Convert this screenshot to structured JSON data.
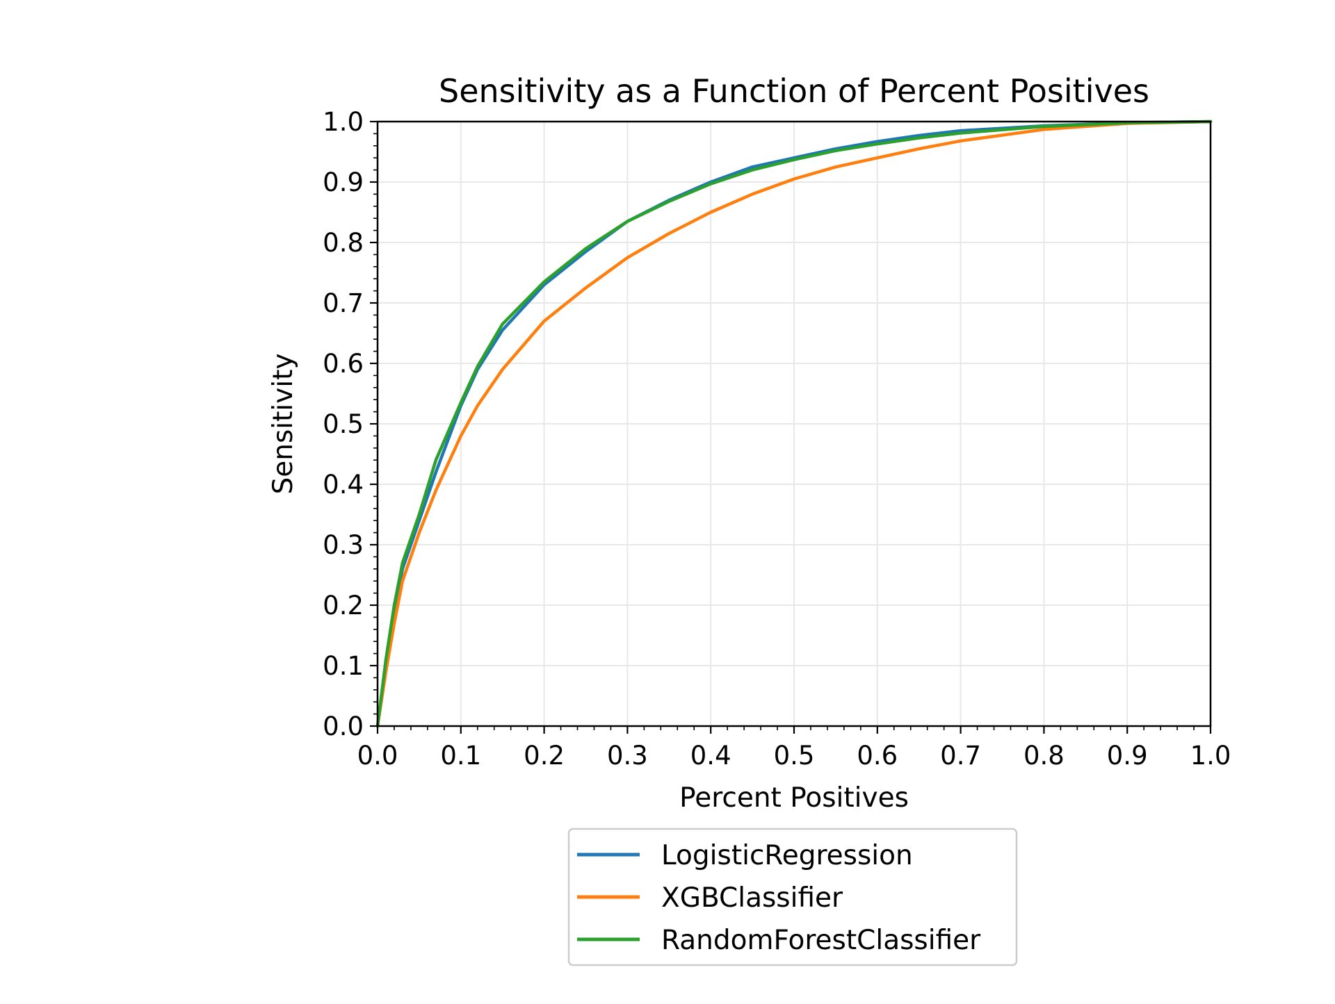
{
  "chart_data": {
    "type": "line",
    "title": "Sensitivity as a Function of Percent Positives",
    "xlabel": "Percent Positives",
    "ylabel": "Sensitivity",
    "xlim": [
      0.0,
      1.0
    ],
    "ylim": [
      0.0,
      1.0
    ],
    "xticks": [
      "0.0",
      "0.1",
      "0.2",
      "0.3",
      "0.4",
      "0.5",
      "0.6",
      "0.7",
      "0.8",
      "0.9",
      "1.0"
    ],
    "yticks": [
      "0.0",
      "0.1",
      "0.2",
      "0.3",
      "0.4",
      "0.5",
      "0.6",
      "0.7",
      "0.8",
      "0.9",
      "1.0"
    ],
    "grid": true,
    "legend_position": "below-center",
    "series": [
      {
        "name": "LogisticRegression",
        "color": "#1f77b4",
        "points": [
          [
            0.0,
            0.0
          ],
          [
            0.01,
            0.1
          ],
          [
            0.02,
            0.19
          ],
          [
            0.03,
            0.26
          ],
          [
            0.05,
            0.34
          ],
          [
            0.07,
            0.42
          ],
          [
            0.1,
            0.53
          ],
          [
            0.12,
            0.59
          ],
          [
            0.15,
            0.655
          ],
          [
            0.2,
            0.73
          ],
          [
            0.25,
            0.785
          ],
          [
            0.3,
            0.835
          ],
          [
            0.35,
            0.87
          ],
          [
            0.4,
            0.9
          ],
          [
            0.45,
            0.925
          ],
          [
            0.5,
            0.94
          ],
          [
            0.55,
            0.955
          ],
          [
            0.6,
            0.967
          ],
          [
            0.65,
            0.977
          ],
          [
            0.7,
            0.985
          ],
          [
            0.8,
            0.993
          ],
          [
            0.9,
            0.998
          ],
          [
            1.0,
            1.0
          ]
        ]
      },
      {
        "name": "XGBClassifier",
        "color": "#ff7f0e",
        "points": [
          [
            0.0,
            0.0
          ],
          [
            0.01,
            0.09
          ],
          [
            0.02,
            0.17
          ],
          [
            0.03,
            0.24
          ],
          [
            0.05,
            0.32
          ],
          [
            0.07,
            0.39
          ],
          [
            0.1,
            0.48
          ],
          [
            0.12,
            0.53
          ],
          [
            0.15,
            0.59
          ],
          [
            0.2,
            0.67
          ],
          [
            0.25,
            0.725
          ],
          [
            0.3,
            0.775
          ],
          [
            0.35,
            0.815
          ],
          [
            0.4,
            0.85
          ],
          [
            0.45,
            0.88
          ],
          [
            0.5,
            0.905
          ],
          [
            0.55,
            0.925
          ],
          [
            0.6,
            0.94
          ],
          [
            0.65,
            0.955
          ],
          [
            0.7,
            0.968
          ],
          [
            0.8,
            0.987
          ],
          [
            0.9,
            0.997
          ],
          [
            1.0,
            1.0
          ]
        ]
      },
      {
        "name": "RandomForestClassifier",
        "color": "#2ca02c",
        "points": [
          [
            0.0,
            0.0
          ],
          [
            0.01,
            0.11
          ],
          [
            0.02,
            0.2
          ],
          [
            0.03,
            0.27
          ],
          [
            0.05,
            0.35
          ],
          [
            0.07,
            0.44
          ],
          [
            0.1,
            0.535
          ],
          [
            0.12,
            0.595
          ],
          [
            0.15,
            0.665
          ],
          [
            0.2,
            0.735
          ],
          [
            0.25,
            0.79
          ],
          [
            0.3,
            0.835
          ],
          [
            0.35,
            0.868
          ],
          [
            0.4,
            0.897
          ],
          [
            0.45,
            0.92
          ],
          [
            0.5,
            0.937
          ],
          [
            0.55,
            0.952
          ],
          [
            0.6,
            0.963
          ],
          [
            0.65,
            0.973
          ],
          [
            0.7,
            0.981
          ],
          [
            0.8,
            0.992
          ],
          [
            0.9,
            0.998
          ],
          [
            1.0,
            1.0
          ]
        ]
      }
    ]
  }
}
